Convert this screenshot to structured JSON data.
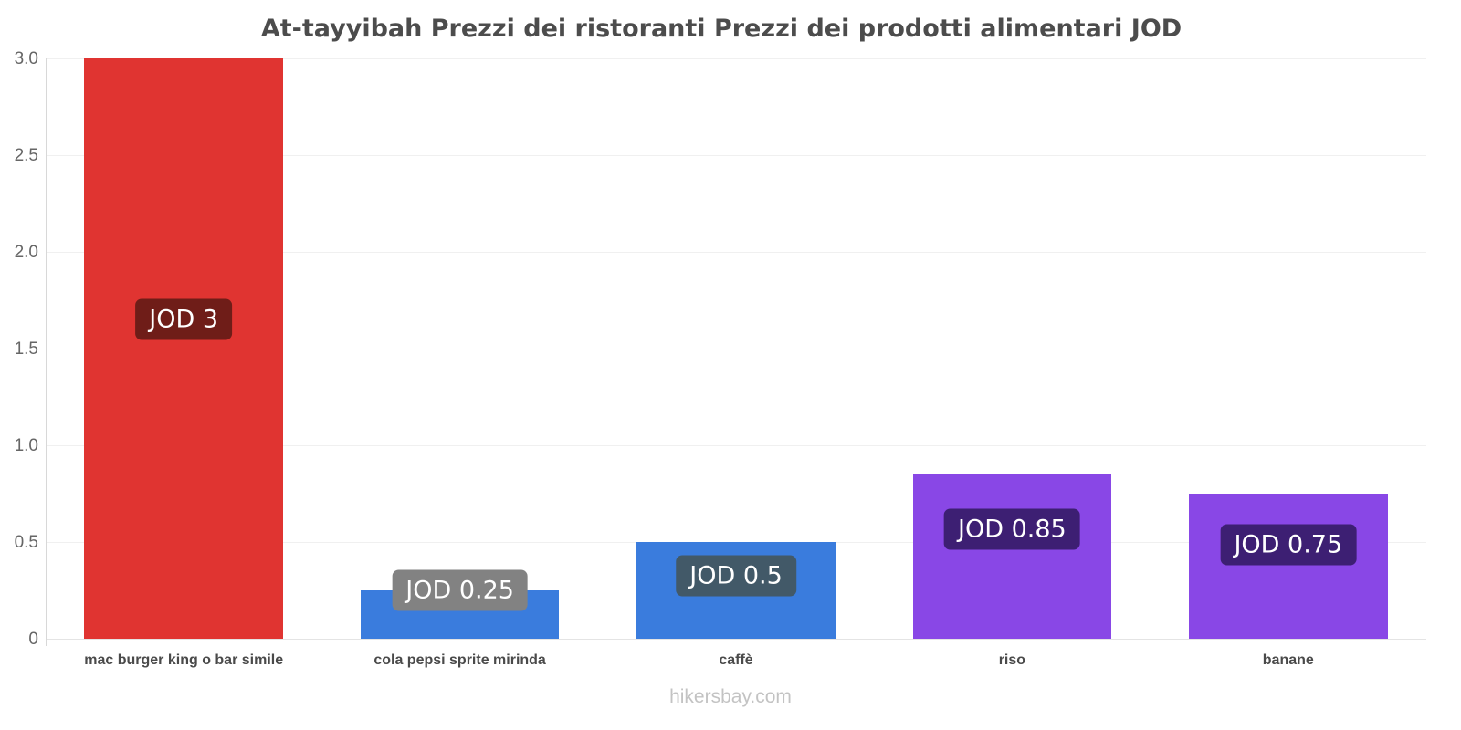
{
  "footer": "hikersbay.com",
  "chart_data": {
    "type": "bar",
    "title": "At-tayyibah Prezzi dei ristoranti Prezzi dei prodotti alimentari JOD",
    "xlabel": "",
    "ylabel": "",
    "currency": "JOD",
    "categories": [
      "mac burger king o bar simile",
      "cola pepsi sprite mirinda",
      "caffè",
      "riso",
      "banane"
    ],
    "values": [
      3,
      0.25,
      0.5,
      0.85,
      0.75
    ],
    "value_labels": [
      "JOD 3",
      "JOD 0.25",
      "JOD 0.5",
      "JOD 0.85",
      "JOD 0.75"
    ],
    "bar_colors": [
      "#e03431",
      "#3a7cdd",
      "#3a7cdd",
      "#8947e6",
      "#8947e6"
    ],
    "badge_colors": [
      "#6f1d18",
      "#828282",
      "#425968",
      "#3d1f73",
      "#3d1f73"
    ],
    "ylim": [
      0,
      3
    ],
    "yticks": [
      0,
      0.5,
      1.0,
      1.5,
      2.0,
      2.5,
      3.0
    ],
    "ytick_labels": [
      "0",
      "0.5",
      "1.0",
      "1.5",
      "2.0",
      "2.5",
      "3.0"
    ],
    "grid": true,
    "legend": false
  }
}
